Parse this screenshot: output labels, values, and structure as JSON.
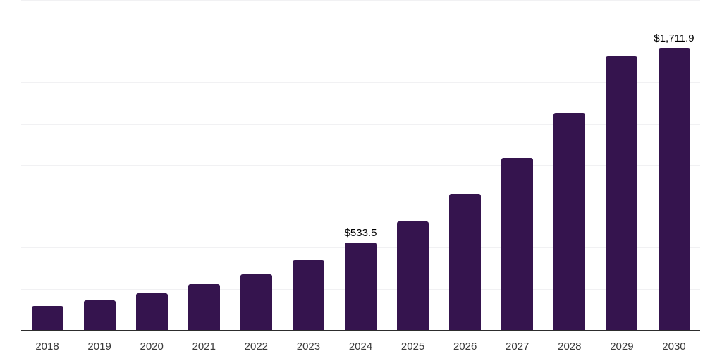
{
  "chart_data": {
    "type": "bar",
    "title": "",
    "xlabel": "",
    "ylabel": "",
    "categories": [
      "2018",
      "2019",
      "2020",
      "2021",
      "2022",
      "2023",
      "2024",
      "2025",
      "2026",
      "2027",
      "2028",
      "2029",
      "2030"
    ],
    "values": [
      150,
      184,
      226,
      280,
      341,
      425,
      533.5,
      664,
      829,
      1045,
      1318,
      1662,
      1711.9
    ],
    "data_labels": [
      {
        "category": "2024",
        "text": "$533.5"
      },
      {
        "category": "2030",
        "text": "$1,711.9"
      }
    ],
    "ylim": [
      0,
      2000
    ],
    "gridline_interval": 250,
    "grid": true,
    "legend": "none",
    "y_axis_tick_labels_visible": false,
    "colors": {
      "bar": "#35144e",
      "axis_line": "#2d2d2d",
      "gridline": "#f1f1f3",
      "tick_label": "#3a3a3a",
      "data_label": "#000000",
      "background": "#ffffff"
    }
  }
}
